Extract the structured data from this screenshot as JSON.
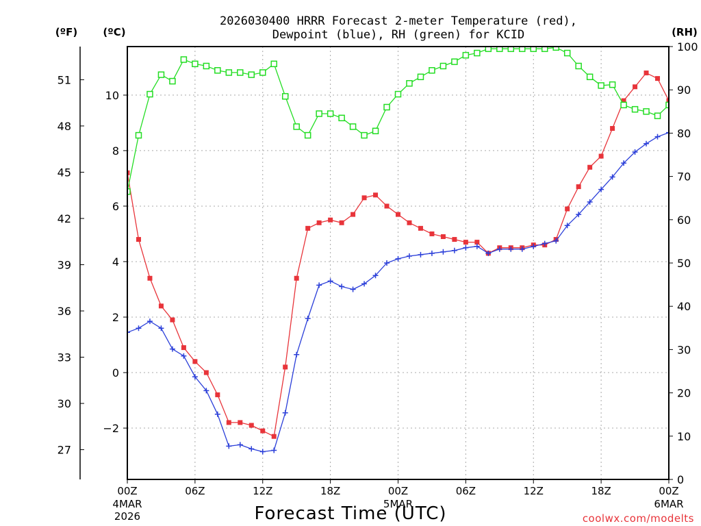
{
  "chart_data": {
    "type": "line",
    "title_line1": "2026030400 HRRR Forecast 2-meter Temperature (red),",
    "title_line2": "Dewpoint (blue), RH (green) for KCID",
    "xlabel": "Forecast Time (UTC)",
    "credit": "coolwx.com/modelts",
    "units": {
      "left_outer": "(ºF)",
      "left_inner": "(ºC)",
      "right": "(RH)"
    },
    "x_range_hours": [
      0,
      48
    ],
    "x_ticks": [
      {
        "hour": 0,
        "label": "00Z",
        "date_line1": "4MAR",
        "date_line2": "2026"
      },
      {
        "hour": 6,
        "label": "06Z"
      },
      {
        "hour": 12,
        "label": "12Z"
      },
      {
        "hour": 18,
        "label": "18Z"
      },
      {
        "hour": 24,
        "label": "00Z",
        "date_line1": "5MAR"
      },
      {
        "hour": 30,
        "label": "06Z"
      },
      {
        "hour": 36,
        "label": "12Z"
      },
      {
        "hour": 42,
        "label": "18Z"
      },
      {
        "hour": 48,
        "label": "00Z",
        "date_line1": "6MAR"
      }
    ],
    "celsius_range": [
      -3.85,
      11.75
    ],
    "celsius_ticks": [
      "−2",
      "0",
      "2",
      "4",
      "6",
      "8",
      "10"
    ],
    "fahrenheit_ticks": [
      "27",
      "30",
      "33",
      "36",
      "39",
      "42",
      "45",
      "48",
      "51"
    ],
    "rh_range": [
      0,
      100
    ],
    "rh_ticks": [
      "0",
      "10",
      "20",
      "30",
      "40",
      "50",
      "60",
      "70",
      "80",
      "90",
      "100"
    ],
    "grid": true,
    "series": [
      {
        "name": "Temperature",
        "color": "#e8343a",
        "marker": "filled-square",
        "axis": "celsius",
        "x": [
          0,
          1,
          2,
          3,
          4,
          5,
          6,
          7,
          8,
          9,
          10,
          11,
          12,
          13,
          14,
          15,
          16,
          17,
          18,
          19,
          20,
          21,
          22,
          23,
          24,
          25,
          26,
          27,
          28,
          29,
          30,
          31,
          32,
          33,
          34,
          35,
          36,
          37,
          38,
          39,
          40,
          41,
          42,
          43,
          44,
          45,
          46,
          47,
          48
        ],
        "values": [
          7.2,
          4.8,
          3.4,
          2.4,
          1.9,
          0.9,
          0.4,
          0,
          -0.8,
          -1.8,
          -1.8,
          -1.9,
          -2.1,
          -2.3,
          0.2,
          3.4,
          5.2,
          5.4,
          5.5,
          5.4,
          5.7,
          6.3,
          6.4,
          6.0,
          5.7,
          5.4,
          5.2,
          5.0,
          4.9,
          4.8,
          4.7,
          4.7,
          4.3,
          4.5,
          4.5,
          4.5,
          4.6,
          4.6,
          4.8,
          5.9,
          6.7,
          7.4,
          7.8,
          8.8,
          9.8,
          10.3,
          10.8,
          10.6,
          9.8
        ]
      },
      {
        "name": "Dewpoint",
        "color": "#2b3fd9",
        "marker": "plus",
        "axis": "celsius",
        "x": [
          0,
          1,
          2,
          3,
          4,
          5,
          6,
          7,
          8,
          9,
          10,
          11,
          12,
          13,
          14,
          15,
          16,
          17,
          18,
          19,
          20,
          21,
          22,
          23,
          24,
          25,
          26,
          27,
          28,
          29,
          30,
          31,
          32,
          33,
          34,
          35,
          36,
          37,
          38,
          39,
          40,
          41,
          42,
          43,
          44,
          45,
          46,
          47,
          48
        ],
        "values": [
          1.45,
          1.6,
          1.85,
          1.6,
          0.85,
          0.6,
          -0.15,
          -0.65,
          -1.5,
          -2.65,
          -2.6,
          -2.75,
          -2.85,
          -2.8,
          -1.45,
          0.65,
          1.95,
          3.15,
          3.3,
          3.1,
          3.0,
          3.2,
          3.5,
          3.95,
          4.1,
          4.2,
          4.25,
          4.3,
          4.35,
          4.4,
          4.5,
          4.55,
          4.3,
          4.45,
          4.45,
          4.45,
          4.55,
          4.65,
          4.75,
          5.3,
          5.7,
          6.15,
          6.6,
          7.05,
          7.55,
          7.95,
          8.25,
          8.5,
          8.65
        ]
      },
      {
        "name": "RH",
        "color": "#22dd22",
        "marker": "open-square",
        "axis": "rh",
        "x": [
          0,
          1,
          2,
          3,
          4,
          5,
          6,
          7,
          8,
          9,
          10,
          11,
          12,
          13,
          14,
          15,
          16,
          17,
          18,
          19,
          20,
          21,
          22,
          23,
          24,
          25,
          26,
          27,
          28,
          29,
          30,
          31,
          32,
          33,
          34,
          35,
          36,
          37,
          38,
          39,
          40,
          41,
          42,
          43,
          44,
          45,
          46,
          47,
          48
        ],
        "values": [
          66.5,
          79.5,
          89,
          93.5,
          92,
          97,
          96,
          95.5,
          94.5,
          94,
          94,
          93.5,
          94,
          96,
          88.5,
          81.5,
          79.5,
          84.5,
          84.5,
          83.5,
          81.5,
          79.5,
          80.5,
          86,
          89,
          91.5,
          93,
          94.5,
          95.5,
          96.5,
          98,
          98.5,
          99.5,
          99.5,
          99.5,
          99.5,
          99.5,
          99.5,
          99.8,
          98.5,
          95.5,
          93,
          91,
          91.2,
          86.5,
          85.5,
          85,
          84,
          86.5
        ]
      }
    ]
  }
}
